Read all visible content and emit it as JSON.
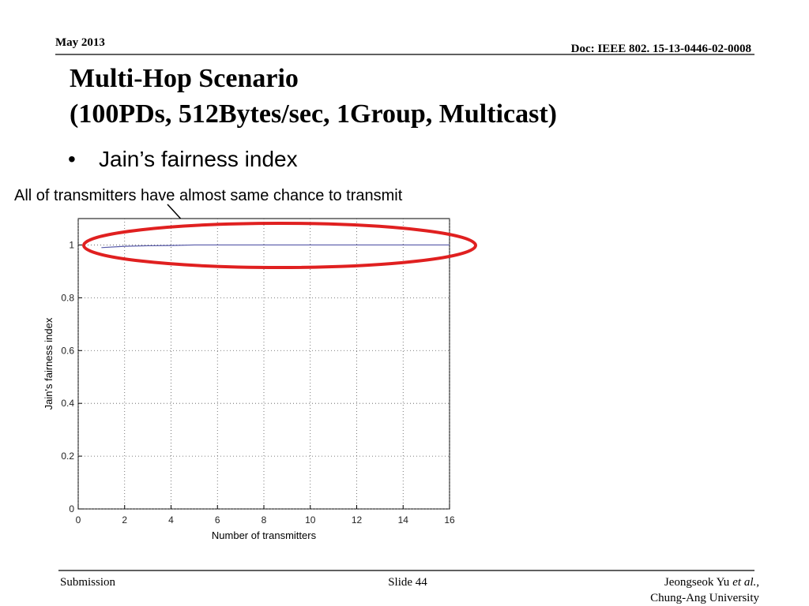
{
  "header": {
    "date": "May 2013",
    "doc": "Doc: IEEE 802. 15-13-0446-02-0008"
  },
  "title": {
    "lines": [
      "Multi-Hop Scenario",
      "(100PDs, 512Bytes/sec, 1Group, Multicast)"
    ]
  },
  "bullet": "Jain’s fairness index",
  "annotation": "All of transmitters have almost same chance to transmit",
  "chart_data": {
    "type": "line",
    "xlabel": "Number of transmitters",
    "ylabel": "Jain's fairness index",
    "x": [
      1,
      2,
      3,
      4,
      5,
      6,
      7,
      8,
      9,
      10,
      11,
      12,
      13,
      14,
      15,
      16
    ],
    "values": [
      0.99,
      0.995,
      0.997,
      0.998,
      1,
      1,
      1,
      1,
      1,
      1,
      1,
      1,
      1,
      1,
      1,
      1
    ],
    "color": "#5558a8",
    "xlim": [
      0,
      16
    ],
    "xticks": [
      0,
      2,
      4,
      6,
      8,
      10,
      12,
      14,
      16
    ],
    "ylim": [
      0,
      1.1
    ],
    "yticks": [
      0,
      0.2,
      0.4,
      0.6,
      0.8,
      1
    ],
    "grid": true
  },
  "footer": {
    "left": "Submission",
    "center": "Slide 44",
    "author": "Jeongseok Yu",
    "etal": "et al.,",
    "affiliation": "Chung-Ang University"
  }
}
